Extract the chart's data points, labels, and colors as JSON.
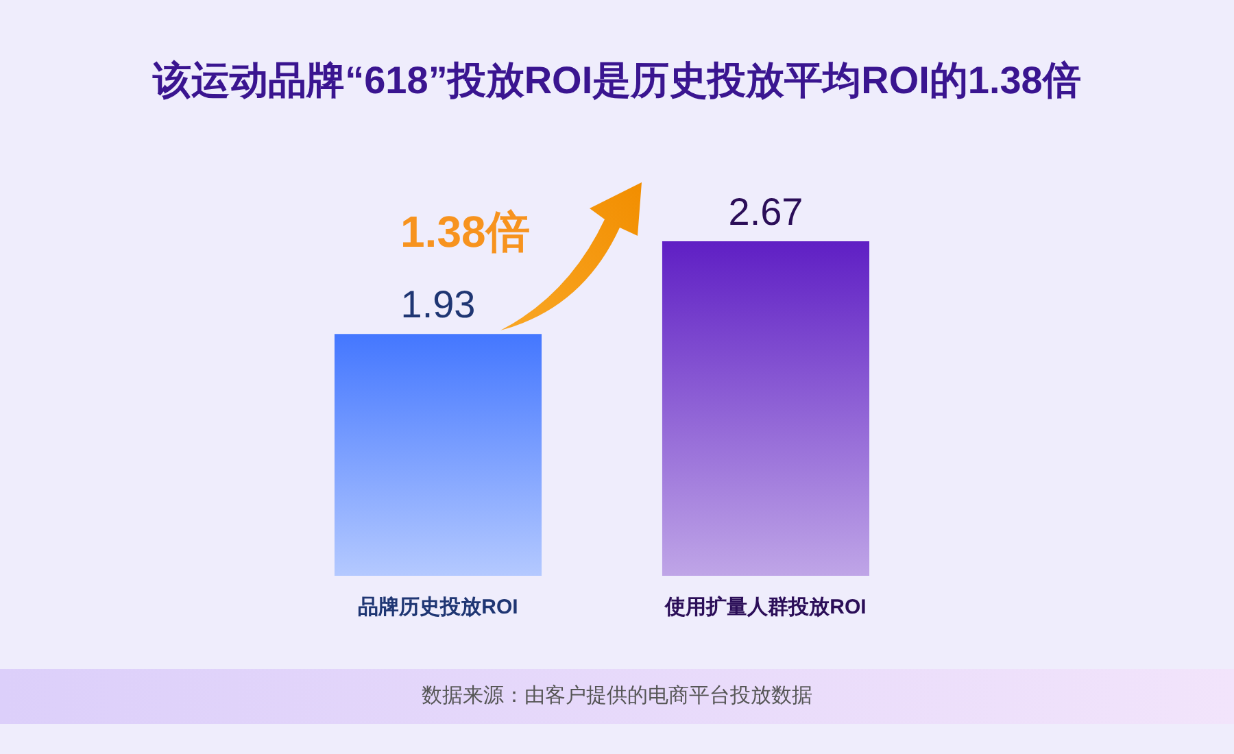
{
  "chart_data": {
    "type": "bar",
    "title": "该运动品牌“618”投放ROI是历史投放平均ROI的1.38倍",
    "categories": [
      "品牌历史投放ROI",
      "使用扩量人群投放ROI"
    ],
    "values": [
      1.93,
      2.67
    ],
    "colors": [
      "#4477ff",
      "#5f1fc4"
    ],
    "data_labels": true,
    "tick_labels": "x",
    "annotations": [
      "1.38倍",
      "数据来源：由客户提供的电商平台投放数据"
    ]
  }
}
